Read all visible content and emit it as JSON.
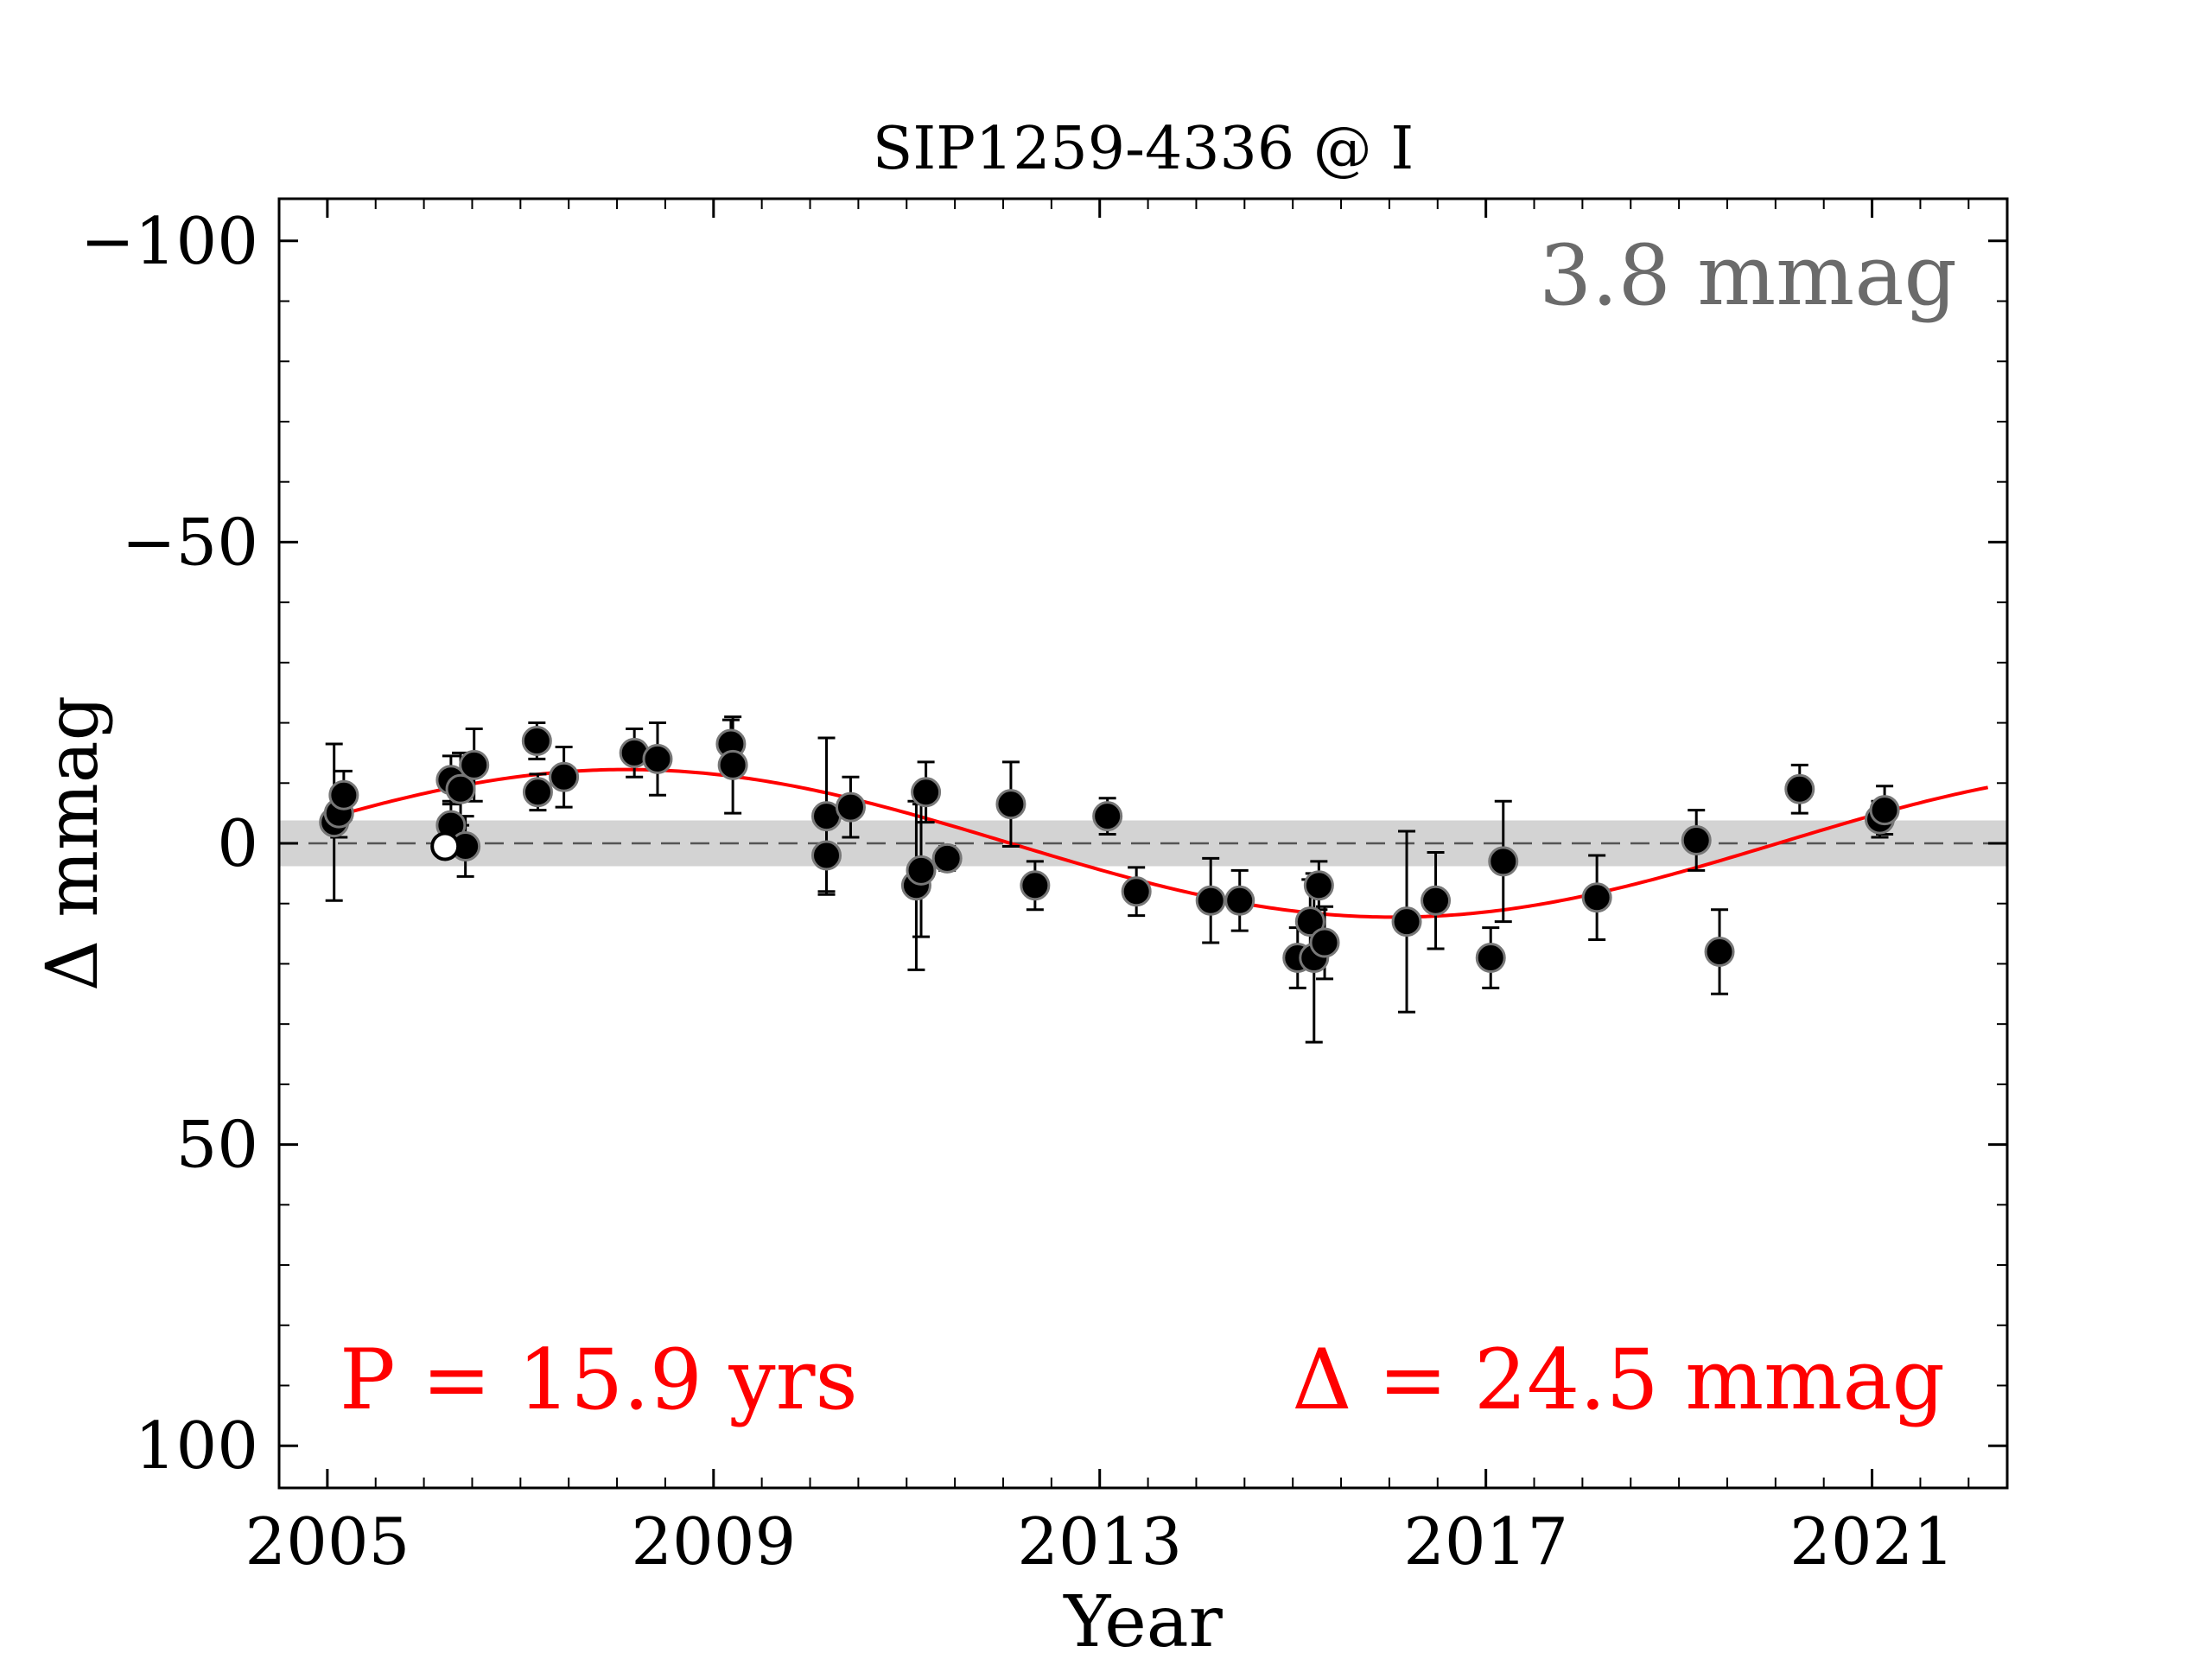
{
  "chart_data": {
    "type": "scatter",
    "title": "SIP1259-4336 @ I",
    "xlabel": "Year",
    "ylabel": "Δ  mmag",
    "xlim": [
      2004.5,
      2022.4
    ],
    "ylim": [
      -107,
      107
    ],
    "y_inverted": true,
    "x_ticks": [
      2005,
      2009,
      2013,
      2017,
      2021
    ],
    "x_tick_labels": [
      "2005",
      "2009",
      "2013",
      "2017",
      "2021"
    ],
    "y_ticks": [
      -100,
      -50,
      0,
      50,
      100
    ],
    "y_tick_labels": [
      "−100",
      "−50",
      "0",
      "50",
      "100"
    ],
    "grid": false,
    "band": {
      "half_width": 3.8,
      "label": "3.8 mmag",
      "color": "#d3d3d3",
      "label_color": "#6b6b6b"
    },
    "reference_line": {
      "y": 0,
      "style": "dashed",
      "color": "#555555"
    },
    "fit": {
      "period_label": "P = 15.9 yrs",
      "amplitude_label": "Δ = 24.5 mmag",
      "color": "#ff0000",
      "period": 15.9,
      "amplitude": 12.25,
      "peak_year": 2008.1,
      "x_range": [
        2005.2,
        2022.2
      ]
    },
    "series": [
      {
        "marker": "filled-circle",
        "color": "#000000",
        "points": [
          {
            "x": 2005.07,
            "y": -3.5,
            "err": 13
          },
          {
            "x": 2005.12,
            "y": -5,
            "err": 4
          },
          {
            "x": 2005.17,
            "y": -8,
            "err": 4
          },
          {
            "x": 2006.28,
            "y": -10.5,
            "err": 4
          },
          {
            "x": 2006.28,
            "y": -3,
            "err": 4
          },
          {
            "x": 2006.38,
            "y": -9,
            "err": 6
          },
          {
            "x": 2006.43,
            "y": 0.5,
            "err": 5
          },
          {
            "x": 2006.52,
            "y": -13,
            "err": 6
          },
          {
            "x": 2007.17,
            "y": -17,
            "err": 3
          },
          {
            "x": 2007.18,
            "y": -8.5,
            "err": 3
          },
          {
            "x": 2007.45,
            "y": -11,
            "err": 5
          },
          {
            "x": 2008.18,
            "y": -15,
            "err": 4
          },
          {
            "x": 2008.42,
            "y": -14,
            "err": 6
          },
          {
            "x": 2009.18,
            "y": -16.5,
            "err": 4
          },
          {
            "x": 2009.2,
            "y": -13,
            "err": 8
          },
          {
            "x": 2010.17,
            "y": -4.5,
            "err": 13
          },
          {
            "x": 2010.17,
            "y": 2,
            "err": 6
          },
          {
            "x": 2010.42,
            "y": -6,
            "err": 5
          },
          {
            "x": 2011.1,
            "y": 7,
            "err": 14
          },
          {
            "x": 2011.15,
            "y": 4.5,
            "err": 11
          },
          {
            "x": 2011.2,
            "y": -8.5,
            "err": 5
          },
          {
            "x": 2011.42,
            "y": 2.5,
            "err": 2
          },
          {
            "x": 2012.08,
            "y": -6.5,
            "err": 7
          },
          {
            "x": 2012.33,
            "y": 7,
            "err": 4
          },
          {
            "x": 2013.08,
            "y": -4.5,
            "err": 3
          },
          {
            "x": 2013.38,
            "y": 8,
            "err": 4
          },
          {
            "x": 2014.15,
            "y": 9.5,
            "err": 7
          },
          {
            "x": 2014.45,
            "y": 9.5,
            "err": 5
          },
          {
            "x": 2015.05,
            "y": 19,
            "err": 5
          },
          {
            "x": 2015.18,
            "y": 13,
            "err": 7
          },
          {
            "x": 2015.22,
            "y": 19,
            "err": 14
          },
          {
            "x": 2015.27,
            "y": 7,
            "err": 4
          },
          {
            "x": 2015.33,
            "y": 16.5,
            "err": 6
          },
          {
            "x": 2016.18,
            "y": 13,
            "err": 15
          },
          {
            "x": 2016.48,
            "y": 9.5,
            "err": 8
          },
          {
            "x": 2017.05,
            "y": 19,
            "err": 5
          },
          {
            "x": 2017.18,
            "y": 3,
            "err": 10
          },
          {
            "x": 2018.15,
            "y": 9,
            "err": 7
          },
          {
            "x": 2019.18,
            "y": -0.5,
            "err": 5
          },
          {
            "x": 2019.42,
            "y": 18,
            "err": 7
          },
          {
            "x": 2020.25,
            "y": -9,
            "err": 4
          },
          {
            "x": 2021.08,
            "y": -4,
            "err": 3
          },
          {
            "x": 2021.13,
            "y": -5.5,
            "err": 4
          }
        ]
      },
      {
        "marker": "open-circle",
        "color": "#000000",
        "points": [
          {
            "x": 2006.22,
            "y": 0.5,
            "err": 0
          }
        ]
      }
    ]
  }
}
